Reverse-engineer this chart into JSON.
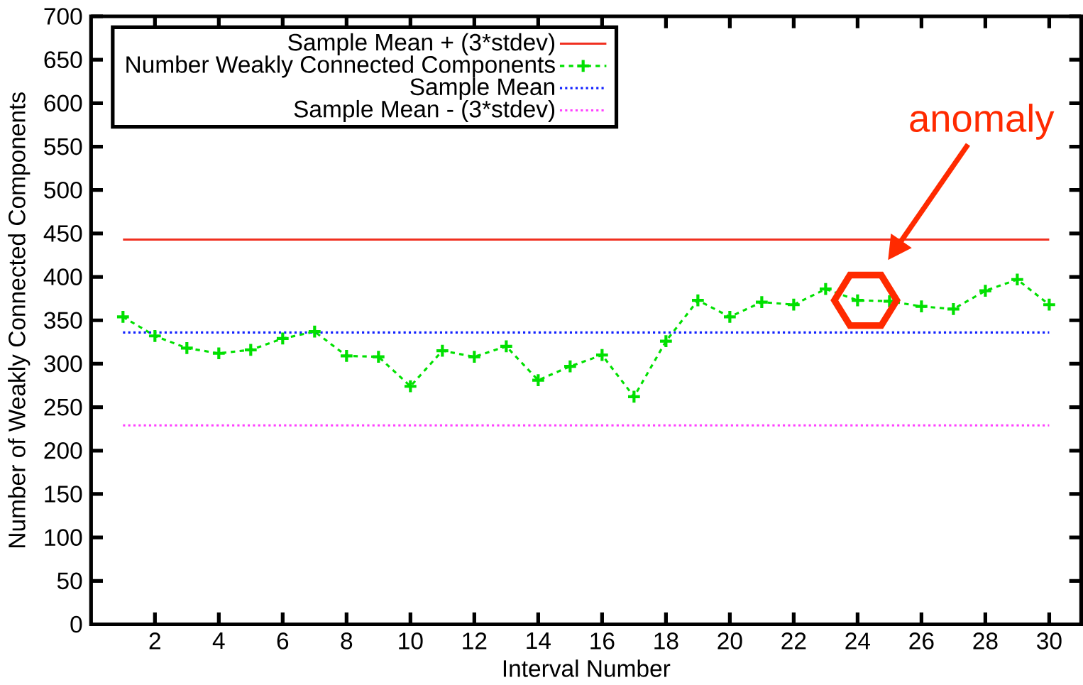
{
  "chart_data": {
    "type": "line",
    "xlabel": "Interval Number",
    "ylabel": "Number of Weakly Connected Components",
    "xlim": [
      0,
      31
    ],
    "xticks": [
      2,
      4,
      6,
      8,
      10,
      12,
      14,
      16,
      18,
      20,
      22,
      24,
      26,
      28,
      30
    ],
    "ylim": [
      0,
      700
    ],
    "yticks": [
      0,
      50,
      100,
      150,
      200,
      250,
      300,
      350,
      400,
      450,
      500,
      550,
      600,
      650,
      700
    ],
    "grid": false,
    "legend": "top left",
    "x": [
      1,
      2,
      3,
      4,
      5,
      6,
      7,
      8,
      9,
      10,
      11,
      12,
      13,
      14,
      15,
      16,
      17,
      18,
      19,
      20,
      21,
      22,
      23,
      24,
      25,
      26,
      27,
      28,
      29,
      30
    ],
    "series": [
      {
        "name": "Sample Mean + (3*stdev)",
        "color": "#f03020",
        "line_style": "solid",
        "marker": "none",
        "values": [
          443,
          443,
          443,
          443,
          443,
          443,
          443,
          443,
          443,
          443,
          443,
          443,
          443,
          443,
          443,
          443,
          443,
          443,
          443,
          443,
          443,
          443,
          443,
          443,
          443,
          443,
          443,
          443,
          443,
          443
        ]
      },
      {
        "name": "Number Weakly Connected Components",
        "color": "#00e000",
        "line_style": "dashed",
        "marker": "cross",
        "values": [
          354,
          332,
          318,
          312,
          316,
          329,
          337,
          309,
          308,
          274,
          315,
          308,
          320,
          281,
          297,
          310,
          262,
          326,
          373,
          354,
          371,
          368,
          386,
          373,
          372,
          366,
          363,
          384,
          397,
          368
        ]
      },
      {
        "name": "Sample Mean",
        "color": "#1020ff",
        "line_style": "dotted",
        "marker": "none",
        "values": [
          336,
          336,
          336,
          336,
          336,
          336,
          336,
          336,
          336,
          336,
          336,
          336,
          336,
          336,
          336,
          336,
          336,
          336,
          336,
          336,
          336,
          336,
          336,
          336,
          336,
          336,
          336,
          336,
          336,
          336
        ]
      },
      {
        "name": "Sample Mean - (3*stdev)",
        "color": "#ff40ff",
        "line_style": "dotted",
        "marker": "none",
        "values": [
          229,
          229,
          229,
          229,
          229,
          229,
          229,
          229,
          229,
          229,
          229,
          229,
          229,
          229,
          229,
          229,
          229,
          229,
          229,
          229,
          229,
          229,
          229,
          229,
          229,
          229,
          229,
          229,
          229,
          229
        ]
      }
    ],
    "annotations": [
      "anomaly"
    ]
  }
}
